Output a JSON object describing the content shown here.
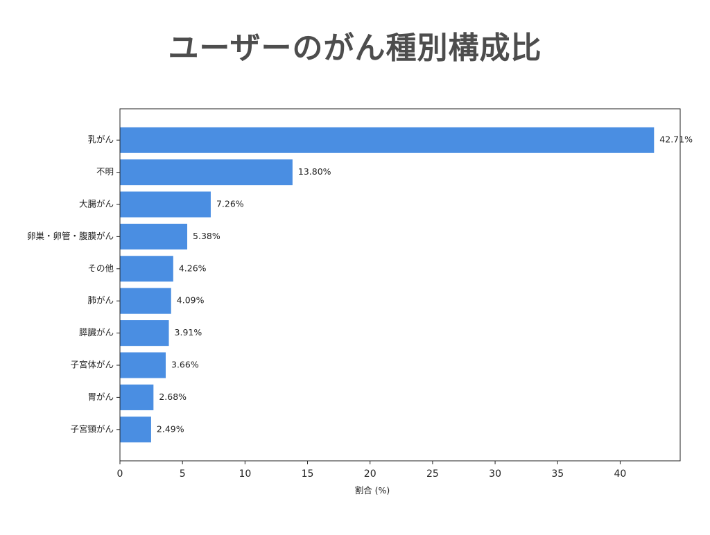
{
  "page": {
    "title": "ユーザーのがん種別構成比"
  },
  "colors": {
    "bar": "#4a8ee2",
    "axis": "#222222",
    "title": "#4d4d4d"
  },
  "chart_data": {
    "type": "bar",
    "orientation": "horizontal",
    "title": "ユーザーのがん種別構成比",
    "xlabel": "割合 (%)",
    "ylabel": "",
    "xlim": [
      0,
      44.8
    ],
    "xticks": [
      0,
      5,
      10,
      15,
      20,
      25,
      30,
      35,
      40
    ],
    "grid": false,
    "categories": [
      "乳がん",
      "不明",
      "大腸がん",
      "卵巣・卵管・腹膜がん",
      "その他",
      "肺がん",
      "膵臓がん",
      "子宮体がん",
      "胃がん",
      "子宮頸がん"
    ],
    "values": [
      42.71,
      13.8,
      7.26,
      5.38,
      4.26,
      4.09,
      3.91,
      3.66,
      2.68,
      2.49
    ],
    "value_labels": [
      "42.71%",
      "13.80%",
      "7.26%",
      "5.38%",
      "4.26%",
      "4.09%",
      "3.91%",
      "3.66%",
      "2.68%",
      "2.49%"
    ]
  }
}
